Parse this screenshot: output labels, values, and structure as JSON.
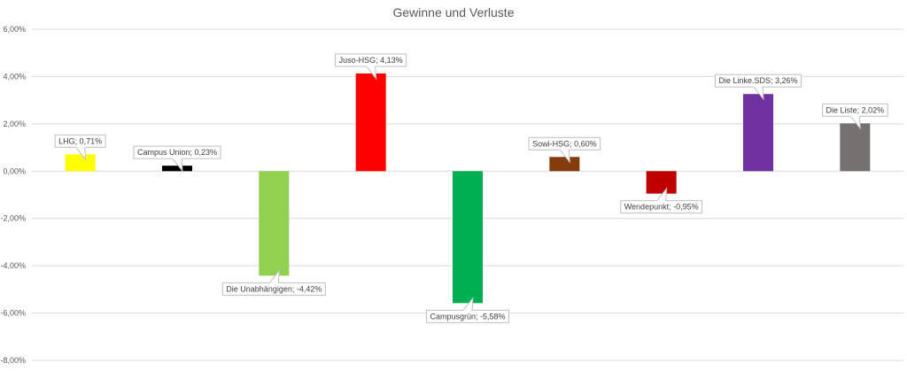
{
  "chart_data": {
    "type": "bar",
    "title": "Gewinne und Verluste",
    "ylim": [
      -8,
      6
    ],
    "ytick_values": [
      6,
      4,
      2,
      0,
      -2,
      -4,
      -6,
      -8
    ],
    "ytick_labels": [
      "6,00%",
      "4,00%",
      "2,00%",
      "0,00%",
      "-2,00%",
      "-4,00%",
      "-6,00%",
      "-8,00%"
    ],
    "grid": true,
    "categories": [
      "LHG",
      "Campus Union",
      "Die Unabhängigen",
      "Juso-HSG",
      "Campusgrün",
      "Sowi-HSG",
      "Wendepunkt",
      "Die Linke.SDS",
      "Die Liste"
    ],
    "values": [
      0.71,
      0.23,
      -4.42,
      4.13,
      -5.58,
      0.6,
      -0.95,
      3.26,
      2.02
    ],
    "labels": [
      "LHG; 0,71%",
      "Campus Union; 0,23%",
      "Die Unabhängigen; -4,42%",
      "Juso-HSG; 4,13%",
      "Campusgrün; -5,58%",
      "Sowi-HSG; 0,60%",
      "Wendepunkt; -0,95%",
      "Die Linke.SDS; 3,26%",
      "Die Liste; 2,02%"
    ],
    "colors": [
      "#ffff00",
      "#000000",
      "#92d050",
      "#ff0000",
      "#00b050",
      "#843c0c",
      "#c00000",
      "#7030a0",
      "#767171"
    ]
  }
}
